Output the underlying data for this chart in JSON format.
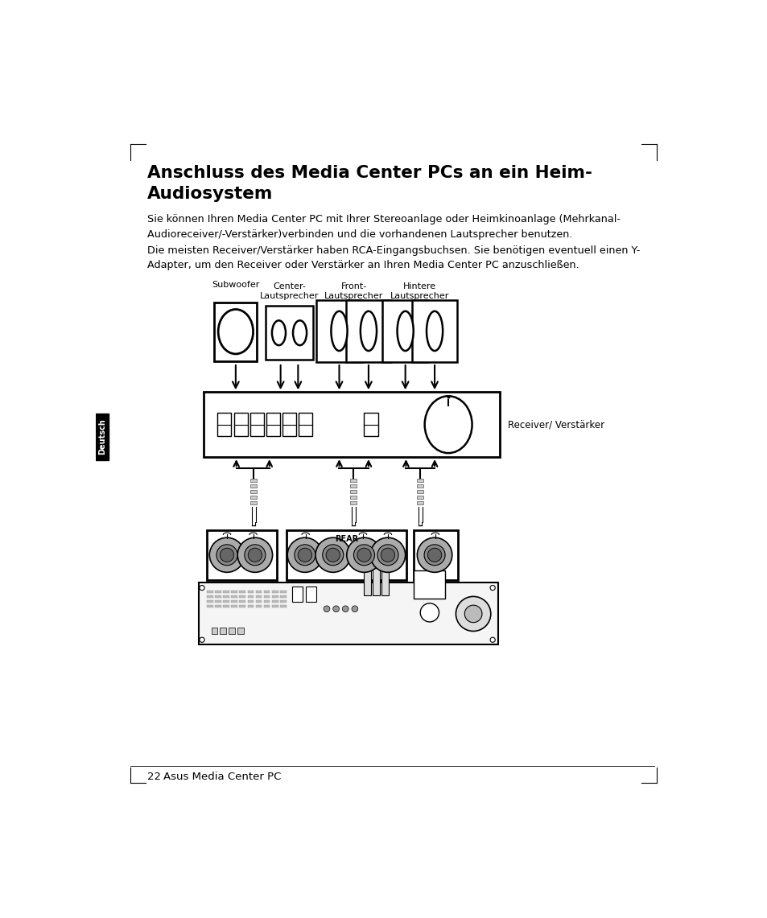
{
  "title_line1": "Anschluss des Media Center PCs an ein Heim-",
  "title_line2": "Audiosystem",
  "body_text1": "Sie können Ihren Media Center PC mit Ihrer Stereoanlage oder Heimkinoanlage (Mehrkanal-\nAudioreceiver/-Verstärker)verbinden und die vorhandenen Lautsprecher benutzen.",
  "body_text2": "Die meisten Receiver/Verstärker haben RCA-Eingangsbuchsen. Sie benötigen eventuell einen Y-\nAdapter, um den Receiver oder Verstärker an Ihren Media Center PC anzuschließen.",
  "label_subwoofer": "Subwoofer",
  "label_center": "Center-\nLautsprecher",
  "label_front": "Front-\nLautsprecher",
  "label_hintere": "Hintere\nLautsprecher",
  "label_receiver": "Receiver/ Verstärker",
  "label_rear": "REAR",
  "page_number": "22",
  "page_label": "Asus Media Center PC",
  "sidebar_label": "Deutsch",
  "bg_color": "#ffffff",
  "text_color": "#000000"
}
